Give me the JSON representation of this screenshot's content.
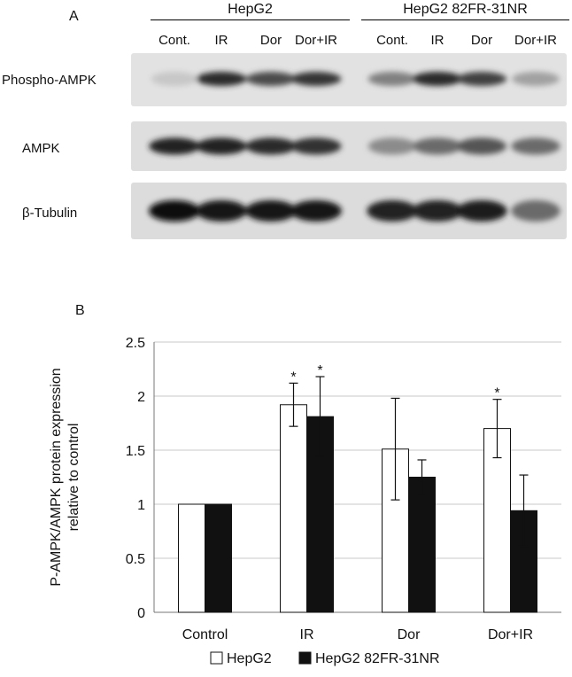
{
  "panel_a": {
    "letter": "A",
    "groups": [
      "HepG2",
      "HepG2 82FR-31NR"
    ],
    "lanes": [
      "Cont.",
      "IR",
      "Dor",
      "Dor+IR",
      "Cont.",
      "IR",
      "Dor",
      "Dor+IR"
    ],
    "rows": [
      {
        "label": "Phospho-AMPK",
        "intensities": [
          0.12,
          0.85,
          0.7,
          0.8,
          0.45,
          0.85,
          0.75,
          0.3
        ]
      },
      {
        "label": "AMPK",
        "intensities": [
          0.9,
          0.88,
          0.85,
          0.82,
          0.4,
          0.55,
          0.65,
          0.55
        ]
      },
      {
        "label": "β-Tubulin",
        "intensities": [
          0.98,
          0.96,
          0.95,
          0.95,
          0.9,
          0.9,
          0.92,
          0.55
        ]
      }
    ]
  },
  "panel_b": {
    "letter": "B"
  },
  "chart_data": {
    "type": "bar",
    "ylabel_lines": [
      "P-AMPK/AMPK protein expression",
      "relative to control"
    ],
    "categories": [
      "Control",
      "IR",
      "Dor",
      "Dor+IR"
    ],
    "ylim": [
      0,
      2.5
    ],
    "yticks": [
      "0",
      "0.5",
      "1",
      "1.5",
      "2",
      "2.5"
    ],
    "grid": true,
    "legend_position": "bottom",
    "significance_marker": "*",
    "series": [
      {
        "name": "HepG2",
        "color": "#ffffff",
        "values": [
          1.0,
          1.92,
          1.51,
          1.7
        ],
        "errors": [
          0,
          0.2,
          0.47,
          0.27
        ],
        "significant": [
          false,
          true,
          false,
          true
        ]
      },
      {
        "name": "HepG2 82FR-31NR",
        "color": "#111111",
        "values": [
          1.0,
          1.81,
          1.25,
          0.94
        ],
        "errors": [
          0,
          0.37,
          0.16,
          0.33
        ],
        "significant": [
          false,
          true,
          false,
          false
        ]
      }
    ]
  }
}
